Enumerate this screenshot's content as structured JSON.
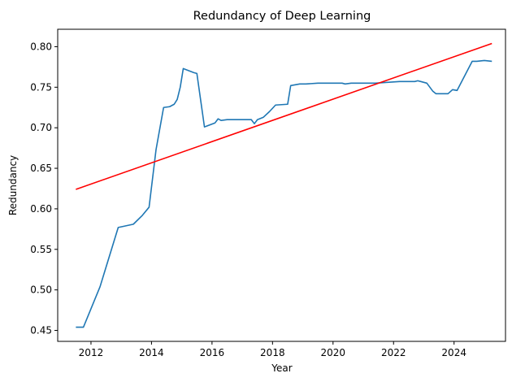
{
  "chart_data": {
    "type": "line",
    "title": "Redundancy of Deep Learning",
    "xlabel": "Year",
    "ylabel": "Redundancy",
    "xlim": [
      2010.9,
      2025.7
    ],
    "ylim": [
      0.4365,
      0.8215
    ],
    "grid": false,
    "xticks": [
      2012,
      2014,
      2016,
      2018,
      2020,
      2022,
      2024
    ],
    "yticks": [
      0.45,
      0.5,
      0.55,
      0.6,
      0.65,
      0.7,
      0.75,
      0.8
    ],
    "series": [
      {
        "color": "#1f77b4",
        "x": [
          2011.5,
          2011.75,
          2012.3,
          2012.9,
          2013.4,
          2013.7,
          2013.92,
          2014.15,
          2014.4,
          2014.6,
          2014.75,
          2014.85,
          2014.95,
          2015.05,
          2015.4,
          2015.5,
          2015.75,
          2016.1,
          2016.2,
          2016.3,
          2016.5,
          2017.0,
          2017.3,
          2017.4,
          2017.5,
          2017.7,
          2017.9,
          2018.1,
          2018.5,
          2018.6,
          2018.9,
          2019.1,
          2019.5,
          2019.9,
          2020.3,
          2020.4,
          2020.6,
          2020.8,
          2021.0,
          2021.4,
          2021.8,
          2022.2,
          2022.6,
          2022.7,
          2022.8,
          2022.9,
          2023.1,
          2023.3,
          2023.4,
          2023.8,
          2023.95,
          2024.1,
          2024.6,
          2024.75,
          2025.0,
          2025.25
        ],
        "y": [
          0.454,
          0.454,
          0.504,
          0.577,
          0.581,
          0.592,
          0.602,
          0.673,
          0.725,
          0.726,
          0.729,
          0.735,
          0.75,
          0.773,
          0.768,
          0.767,
          0.701,
          0.706,
          0.711,
          0.709,
          0.71,
          0.71,
          0.71,
          0.705,
          0.71,
          0.713,
          0.72,
          0.728,
          0.729,
          0.752,
          0.754,
          0.754,
          0.755,
          0.755,
          0.755,
          0.754,
          0.755,
          0.755,
          0.755,
          0.755,
          0.756,
          0.757,
          0.757,
          0.757,
          0.758,
          0.757,
          0.755,
          0.745,
          0.742,
          0.742,
          0.747,
          0.746,
          0.782,
          0.782,
          0.783,
          0.782
        ]
      },
      {
        "color": "#ff0000",
        "x": [
          2011.5,
          2025.25
        ],
        "y": [
          0.624,
          0.804
        ]
      }
    ]
  }
}
